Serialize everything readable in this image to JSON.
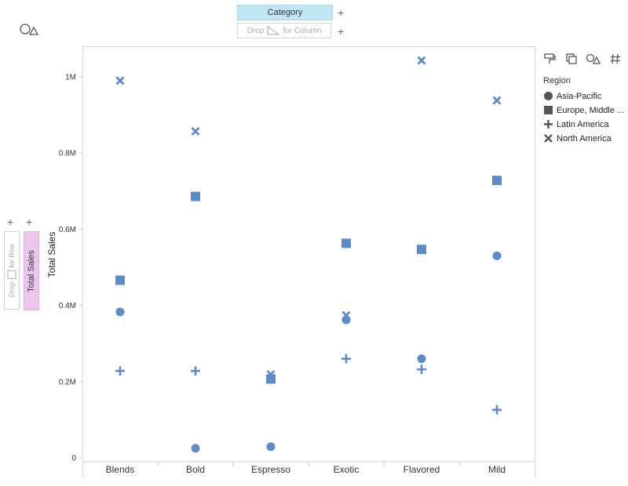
{
  "columns_shelf": {
    "field": "Category",
    "drop_left": "Drop",
    "drop_right": "for Column"
  },
  "rows_shelf": {
    "field": "Total Sales",
    "drop_left": "Drop",
    "drop_right": "for Row"
  },
  "legend": {
    "title": "Region",
    "items": [
      {
        "label": "Asia-Pacific",
        "shape": "circle"
      },
      {
        "label": "Europe, Middle ...",
        "shape": "square"
      },
      {
        "label": "Latin America",
        "shape": "plus"
      },
      {
        "label": "North America",
        "shape": "x"
      }
    ]
  },
  "icons": [
    "shapes-icon",
    "paint-icon",
    "size-icon",
    "shape-icon",
    "number-icon"
  ],
  "colors": {
    "marker": "#5b8cc8",
    "legend_marker": "#555555"
  },
  "chart_data": {
    "type": "scatter",
    "xlabel": "",
    "ylabel": "Total Sales",
    "categories": [
      "Blends",
      "Bold",
      "Espresso",
      "Exotic",
      "Flavored",
      "Mild"
    ],
    "ylim": [
      0,
      1100000
    ],
    "yticks": [
      0,
      200000,
      400000,
      600000,
      800000,
      1000000
    ],
    "ytick_labels": [
      "0",
      "0.2M",
      "0.4M",
      "0.6M",
      "0.8M",
      "1M"
    ],
    "series": [
      {
        "name": "Asia-Pacific",
        "shape": "circle",
        "values": [
          383000,
          25000,
          29000,
          362000,
          260000,
          530000
        ]
      },
      {
        "name": "Europe, Middle ...",
        "shape": "square",
        "values": [
          466000,
          686000,
          207000,
          563000,
          547000,
          728000
        ]
      },
      {
        "name": "Latin America",
        "shape": "plus",
        "values": [
          228000,
          228000,
          207000,
          260000,
          232000,
          126000
        ]
      },
      {
        "name": "North America",
        "shape": "x",
        "values": [
          990000,
          857000,
          219000,
          374000,
          1043000,
          938000
        ]
      }
    ],
    "grid": false,
    "legend_position": "right"
  }
}
